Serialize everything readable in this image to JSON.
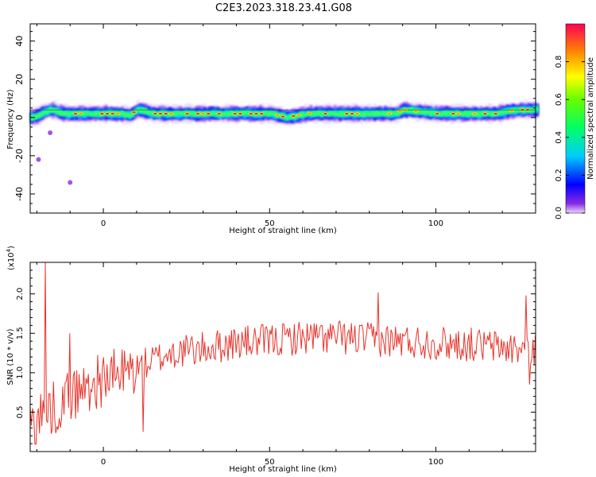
{
  "title": "C2E3.2023.318.23.41.G08",
  "chart_data": [
    {
      "type": "heatmap",
      "xlabel": "Height of straight line (km)",
      "ylabel": "Frequency (Hz)",
      "xlim": [
        -22,
        130
      ],
      "ylim": [
        -50,
        49
      ],
      "xticks": [
        0,
        50,
        100
      ],
      "yticks": [
        -40,
        -20,
        0,
        20,
        40
      ],
      "grid": false,
      "description_points": {
        "centerline_x": [
          -22,
          -20,
          -18,
          -16,
          -14,
          -12,
          -10,
          -5,
          0,
          5,
          8,
          10,
          15,
          20,
          30,
          40,
          50,
          53,
          55,
          58,
          62,
          70,
          80,
          88,
          90,
          95,
          100,
          105,
          110,
          115,
          118,
          120,
          125,
          130
        ],
        "centerline_freq": [
          0,
          1,
          3,
          4,
          3,
          2,
          2,
          2,
          2,
          2,
          1,
          4,
          2,
          2,
          2,
          2,
          2,
          1,
          0,
          1,
          2,
          2,
          2,
          2,
          4,
          3,
          2,
          2,
          2,
          2,
          2,
          3,
          4,
          4
        ],
        "outliers": [
          {
            "x": -19.5,
            "y": -22
          },
          {
            "x": -16,
            "y": -8
          },
          {
            "x": -10,
            "y": -34
          }
        ]
      },
      "colorbar": {
        "label": "Normalized spectral amplitude",
        "range": [
          0,
          1
        ],
        "ticks": [
          "0.0",
          "0.2",
          "0.4",
          "0.6",
          "0.8"
        ]
      }
    },
    {
      "type": "line",
      "xlabel": "Height of straight line (km)",
      "ylabel": "SNR (10 * v/v)",
      "scale_label_base": "(x10",
      "scale_label_exp": "4",
      "scale_label_close": ")",
      "xlim": [
        -22,
        130
      ],
      "ylim": [
        0.0,
        2.4
      ],
      "xticks": [
        0,
        50,
        100
      ],
      "yticks": [
        "0.5",
        "1.0",
        "1.5",
        "2.0"
      ],
      "ytick_values": [
        0.5,
        1.0,
        1.5,
        2.0
      ],
      "color": "#e8332a",
      "grid": false,
      "trend_x": [
        -22,
        -18,
        -15,
        -10,
        -5,
        0,
        5,
        10,
        15,
        20,
        30,
        40,
        50,
        60,
        70,
        80,
        90,
        100,
        110,
        120,
        125,
        130
      ],
      "trend_y": [
        0.35,
        0.5,
        0.55,
        0.7,
        0.82,
        0.92,
        0.98,
        1.05,
        1.15,
        1.25,
        1.3,
        1.38,
        1.4,
        1.45,
        1.45,
        1.42,
        1.4,
        1.38,
        1.36,
        1.32,
        1.3,
        1.3
      ],
      "spikes": [
        {
          "x": -17.5,
          "y": 2.4
        },
        {
          "x": -10,
          "y": 1.5
        },
        {
          "x": 12,
          "y": 0.25
        },
        {
          "x": 82.5,
          "y": 2.02
        },
        {
          "x": 127,
          "y": 1.98
        },
        {
          "x": 128,
          "y": 0.85
        }
      ]
    }
  ]
}
